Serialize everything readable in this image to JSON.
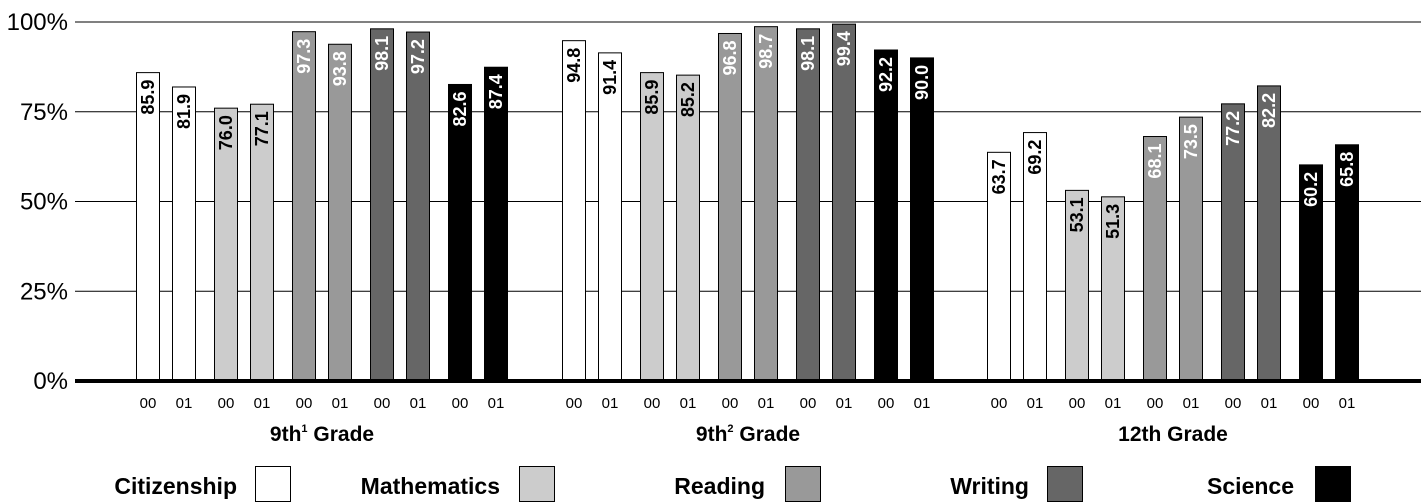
{
  "chart_data": {
    "type": "bar",
    "ylim": [
      0,
      100
    ],
    "yticks": [
      "0%",
      "25%",
      "50%",
      "75%",
      "100%"
    ],
    "grid": true,
    "legend_position": "bottom",
    "groups": [
      {
        "main": "9th",
        "sup": "1",
        "tail": " Grade"
      },
      {
        "main": "9th",
        "sup": "2",
        "tail": " Grade"
      },
      {
        "main": "12th Grade",
        "sup": "",
        "tail": ""
      }
    ],
    "categories": [
      "00",
      "01"
    ],
    "series": [
      {
        "name": "Citizenship",
        "color": "#ffffff",
        "label_color": "#000000",
        "values": [
          [
            85.9,
            81.9
          ],
          [
            94.8,
            91.4
          ],
          [
            63.7,
            69.2
          ]
        ]
      },
      {
        "name": "Mathematics",
        "color": "#cccccc",
        "label_color": "#000000",
        "values": [
          [
            76.0,
            77.1
          ],
          [
            85.9,
            85.2
          ],
          [
            53.1,
            51.3
          ]
        ]
      },
      {
        "name": "Reading",
        "color": "#999999",
        "label_color": "#ffffff",
        "values": [
          [
            97.3,
            93.8
          ],
          [
            96.8,
            98.7
          ],
          [
            68.1,
            73.5
          ]
        ]
      },
      {
        "name": "Writing",
        "color": "#666666",
        "label_color": "#ffffff",
        "values": [
          [
            98.1,
            97.2
          ],
          [
            98.1,
            99.4
          ],
          [
            77.2,
            82.2
          ]
        ]
      },
      {
        "name": "Science",
        "color": "#000000",
        "label_color": "#ffffff",
        "values": [
          [
            82.6,
            87.4
          ],
          [
            92.2,
            90.0
          ],
          [
            60.2,
            65.8
          ]
        ]
      }
    ]
  }
}
